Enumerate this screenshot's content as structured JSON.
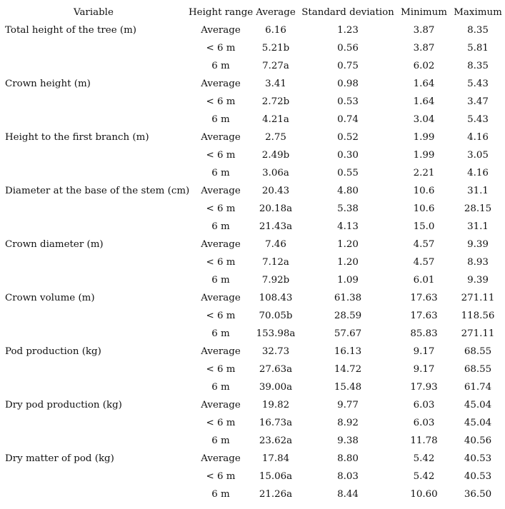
{
  "headers": {
    "variable": "Variable",
    "height_range": "Height range",
    "average": "Average",
    "standard_deviation": "Standard deviation",
    "minimum": "Minimum",
    "maximum": "Maximum"
  },
  "groups": [
    {
      "variable": "Total height of the tree (m)",
      "rows": [
        {
          "range": "Average",
          "average": "6.16",
          "sd": "1.23",
          "min": "3.87",
          "max": "8.35"
        },
        {
          "range": "< 6 m",
          "average": "5.21b",
          "sd": "0.56",
          "min": "3.87",
          "max": "5.81"
        },
        {
          "range": "6 m",
          "average": "7.27a",
          "sd": "0.75",
          "min": "6.02",
          "max": "8.35"
        }
      ]
    },
    {
      "variable": "Crown height (m)",
      "rows": [
        {
          "range": "Average",
          "average": "3.41",
          "sd": "0.98",
          "min": "1.64",
          "max": "5.43"
        },
        {
          "range": "< 6 m",
          "average": "2.72b",
          "sd": "0.53",
          "min": "1.64",
          "max": "3.47"
        },
        {
          "range": "6 m",
          "average": "4.21a",
          "sd": "0.74",
          "min": "3.04",
          "max": "5.43"
        }
      ]
    },
    {
      "variable": "Height to the first branch (m)",
      "rows": [
        {
          "range": "Average",
          "average": "2.75",
          "sd": "0.52",
          "min": "1.99",
          "max": "4.16"
        },
        {
          "range": "< 6 m",
          "average": "2.49b",
          "sd": "0.30",
          "min": "1.99",
          "max": "3.05"
        },
        {
          "range": "6 m",
          "average": "3.06a",
          "sd": "0.55",
          "min": "2.21",
          "max": "4.16"
        }
      ]
    },
    {
      "variable": "Diameter at the base of the stem (cm)",
      "rows": [
        {
          "range": "Average",
          "average": "20.43",
          "sd": "4.80",
          "min": "10.6",
          "max": "31.1"
        },
        {
          "range": "< 6 m",
          "average": "20.18a",
          "sd": "5.38",
          "min": "10.6",
          "max": "28.15"
        },
        {
          "range": "6 m",
          "average": "21.43a",
          "sd": "4.13",
          "min": "15.0",
          "max": "31.1"
        }
      ]
    },
    {
      "variable": "Crown diameter (m)",
      "rows": [
        {
          "range": "Average",
          "average": "7.46",
          "sd": "1.20",
          "min": "4.57",
          "max": "9.39"
        },
        {
          "range": "< 6 m",
          "average": "7.12a",
          "sd": "1.20",
          "min": "4.57",
          "max": "8.93"
        },
        {
          "range": "6 m",
          "average": "7.92b",
          "sd": "1.09",
          "min": "6.01",
          "max": "9.39"
        }
      ]
    },
    {
      "variable": "Crown volume (m)",
      "rows": [
        {
          "range": "Average",
          "average": "108.43",
          "sd": "61.38",
          "min": "17.63",
          "max": "271.11"
        },
        {
          "range": "< 6 m",
          "average": "70.05b",
          "sd": "28.59",
          "min": "17.63",
          "max": "118.56"
        },
        {
          "range": "6 m",
          "average": "153.98a",
          "sd": "57.67",
          "min": "85.83",
          "max": "271.11"
        }
      ]
    },
    {
      "variable": "Pod production (kg)",
      "rows": [
        {
          "range": "Average",
          "average": "32.73",
          "sd": "16.13",
          "min": "9.17",
          "max": "68.55"
        },
        {
          "range": "< 6 m",
          "average": "27.63a",
          "sd": "14.72",
          "min": "9.17",
          "max": "68.55"
        },
        {
          "range": "6 m",
          "average": "39.00a",
          "sd": "15.48",
          "min": "17.93",
          "max": "61.74"
        }
      ]
    },
    {
      "variable": "Dry pod production (kg)",
      "rows": [
        {
          "range": "Average",
          "average": "19.82",
          "sd": "9.77",
          "min": "6.03",
          "max": "45.04"
        },
        {
          "range": "< 6 m",
          "average": "16.73a",
          "sd": "8.92",
          "min": "6.03",
          "max": "45.04"
        },
        {
          "range": "6 m",
          "average": "23.62a",
          "sd": "9.38",
          "min": "11.78",
          "max": "40.56"
        }
      ]
    },
    {
      "variable": "Dry matter of pod (kg)",
      "rows": [
        {
          "range": "Average",
          "average": "17.84",
          "sd": "8.80",
          "min": "5.42",
          "max": "40.53"
        },
        {
          "range": "< 6 m",
          "average": "15.06a",
          "sd": "8.03",
          "min": "5.42",
          "max": "40.53"
        },
        {
          "range": "6 m",
          "average": "21.26a",
          "sd": "8.44",
          "min": "10.60",
          "max": "36.50"
        }
      ]
    }
  ]
}
